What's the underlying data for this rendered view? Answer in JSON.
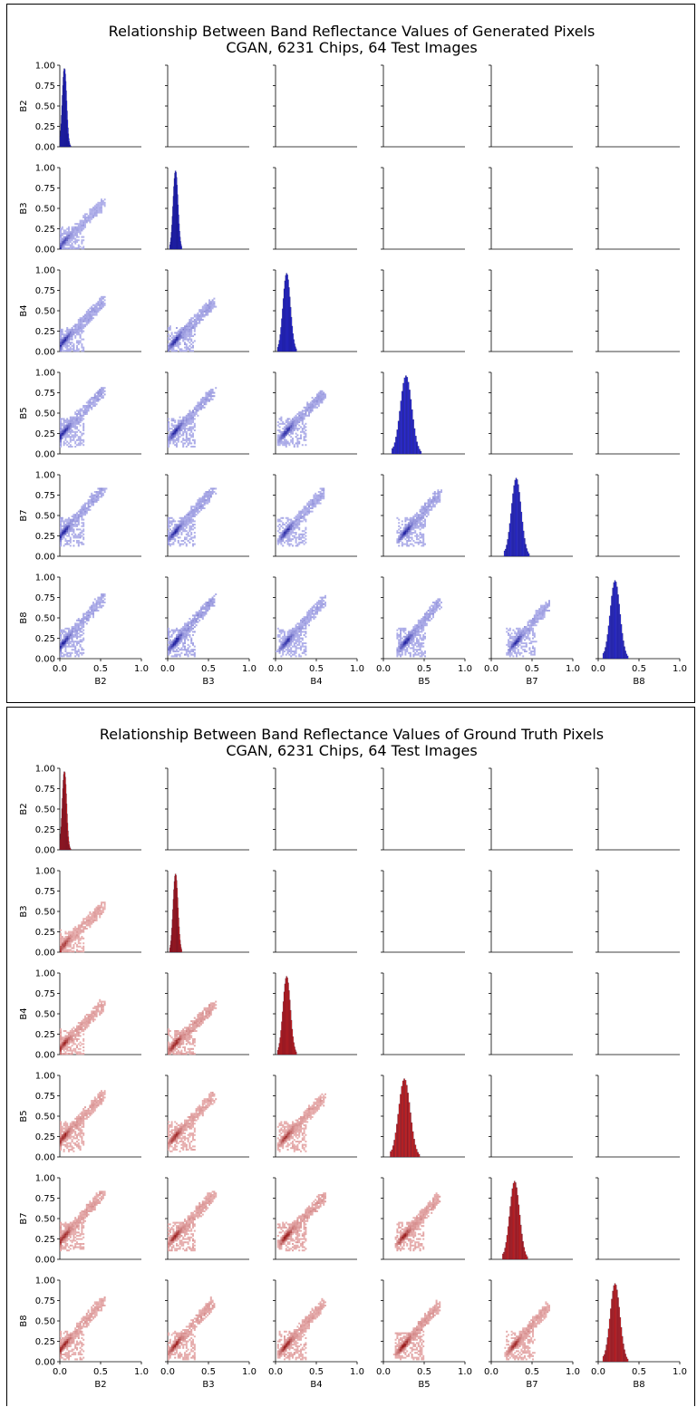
{
  "chart_data": [
    {
      "type": "heatmap",
      "subtype": "pairplot",
      "title": "Relationship Between Band Reflectance Values of Generated Pixels",
      "subtitle": "CGAN, 6231 Chips, 64 Test Images",
      "color": "#2b2bd6",
      "bands": [
        "B2",
        "B3",
        "B4",
        "B5",
        "B7",
        "B8"
      ],
      "xlim": [
        0,
        1
      ],
      "ylim": [
        0,
        1
      ],
      "x_ticks": [
        "0.0",
        "0.5",
        "1.0"
      ],
      "y_ticks": [
        "0.00",
        "0.25",
        "0.50",
        "0.75",
        "1.00"
      ],
      "diag_peaks": [
        0.05,
        0.09,
        0.13,
        0.27,
        0.3,
        0.2
      ],
      "diag_spread": [
        0.025,
        0.028,
        0.045,
        0.07,
        0.06,
        0.06
      ]
    },
    {
      "type": "heatmap",
      "subtype": "pairplot",
      "title": "Relationship Between Band Reflectance Values of Ground Truth Pixels",
      "subtitle": "CGAN, 6231 Chips, 64 Test Images",
      "color": "#cc2222",
      "bands": [
        "B2",
        "B3",
        "B4",
        "B5",
        "B7",
        "B8"
      ],
      "xlim": [
        0,
        1
      ],
      "ylim": [
        0,
        1
      ],
      "x_ticks": [
        "0.0",
        "0.5",
        "1.0"
      ],
      "y_ticks": [
        "0.00",
        "0.25",
        "0.50",
        "0.75",
        "1.00"
      ],
      "diag_peaks": [
        0.05,
        0.09,
        0.13,
        0.25,
        0.28,
        0.2
      ],
      "diag_spread": [
        0.025,
        0.028,
        0.045,
        0.07,
        0.06,
        0.06
      ]
    }
  ]
}
